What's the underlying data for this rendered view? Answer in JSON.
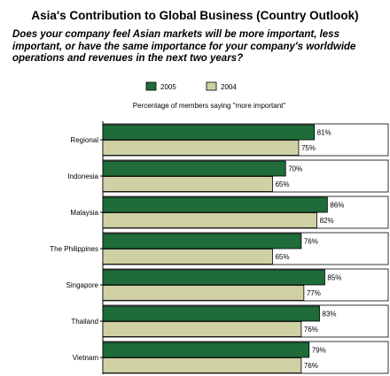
{
  "title": "Asia's Contribution to Global Business (Country Outlook)",
  "question": "Does your company feel Asian markets will be more important, less important, or have the same importance for your company's worldwide operations and revenues in the next two years?",
  "chart_data": {
    "type": "bar",
    "orientation": "horizontal",
    "subtitle": "Percentage of members saying \"more important\"",
    "categories": [
      "Regional",
      "Indonesia",
      "Malaysia",
      "The Philippines",
      "Singapore",
      "Thailand",
      "Vietnam"
    ],
    "series": [
      {
        "name": "2005",
        "values": [
          81,
          70,
          86,
          76,
          85,
          83,
          79
        ],
        "color": "#1f6b3a"
      },
      {
        "name": "2004",
        "values": [
          75,
          65,
          82,
          65,
          77,
          76,
          76
        ],
        "color": "#cfd0a4"
      }
    ],
    "value_suffix": "%",
    "legend_position": "top",
    "grid": false
  }
}
